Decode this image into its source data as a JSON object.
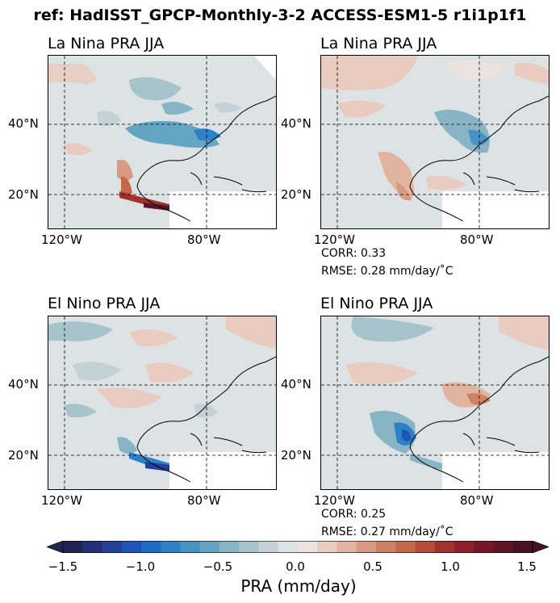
{
  "figure": {
    "title": "ref: HadISST_GPCP-Monthly-3-2 ACCESS-ESM1-5 r1i1p1f1"
  },
  "panels": [
    {
      "id": "ref-lanina",
      "title": "La Nina PRA JJA",
      "corr": "",
      "rmse": ""
    },
    {
      "id": "model-lanina",
      "title": "La Nina PRA JJA",
      "corr": "CORR: 0.33",
      "rmse": "RMSE: 0.28 mm/day/˚C"
    },
    {
      "id": "ref-elnino",
      "title": "El Nino PRA JJA",
      "corr": "",
      "rmse": ""
    },
    {
      "id": "model-elnino",
      "title": "El Nino PRA JJA",
      "corr": "CORR: 0.25",
      "rmse": "RMSE: 0.27 mm/day/˚C"
    }
  ],
  "axes": {
    "lat_ticks": [
      "40°N",
      "20°N"
    ],
    "lon_ticks": [
      "120°W",
      "80°W"
    ],
    "lat_range": [
      10,
      60
    ],
    "lon_range": [
      -125,
      -60
    ],
    "gridlines": "dashed"
  },
  "colorbar": {
    "label": "PRA (mm/day)",
    "ticks": [
      "−1.5",
      "−1.0",
      "−0.5",
      "0.0",
      "0.5",
      "1.0",
      "1.5"
    ],
    "range": [
      -1.5,
      1.5
    ],
    "extend": "both",
    "colors": [
      "#1f2450",
      "#232f78",
      "#25409a",
      "#1d55b8",
      "#1f6bc6",
      "#2c81c7",
      "#4693c4",
      "#65a5c4",
      "#87b5c6",
      "#a7c3cc",
      "#c4d2d7",
      "#dde2e4",
      "#ece3df",
      "#eacbbf",
      "#e2b39f",
      "#d89a80",
      "#ce8163",
      "#c3684b",
      "#b44c3a",
      "#a2322d",
      "#8e1f2a",
      "#761628",
      "#5e1326",
      "#481224"
    ]
  }
}
